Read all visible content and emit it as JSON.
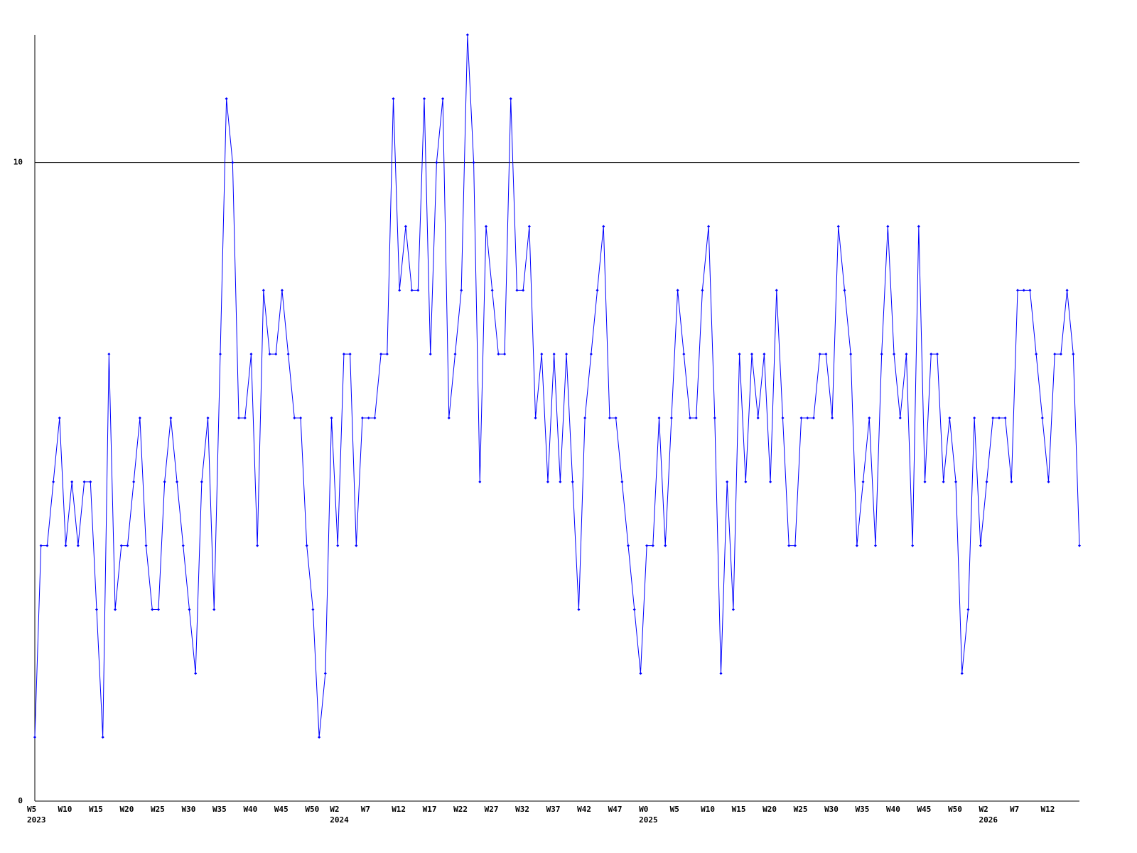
{
  "chart_data": {
    "type": "line",
    "categories": [
      "W5",
      null,
      null,
      null,
      null,
      "W10",
      null,
      null,
      null,
      null,
      "W15",
      null,
      null,
      null,
      null,
      "W20",
      null,
      null,
      null,
      null,
      "W25",
      null,
      null,
      null,
      null,
      "W30",
      null,
      null,
      null,
      null,
      "W35",
      null,
      null,
      null,
      null,
      "W40",
      null,
      null,
      null,
      null,
      "W45",
      null,
      null,
      null,
      null,
      "W50",
      null,
      null,
      null,
      "W2",
      null,
      null,
      null,
      null,
      "W7",
      null,
      null,
      null,
      null,
      "W12",
      null,
      null,
      null,
      null,
      "W17",
      null,
      null,
      null,
      null,
      "W22",
      null,
      null,
      null,
      null,
      "W27",
      null,
      null,
      null,
      null,
      "W32",
      null,
      null,
      null,
      null,
      "W37",
      null,
      null,
      null,
      null,
      "W42",
      null,
      null,
      null,
      null,
      "W47",
      null,
      null,
      null,
      null,
      "W0",
      null,
      null,
      null,
      null,
      "W5",
      null,
      null,
      null,
      null,
      "W10",
      null,
      null,
      null,
      null,
      "W15",
      null,
      null,
      null,
      null,
      "W20",
      null,
      null,
      null,
      null,
      "W25",
      null,
      null,
      null,
      null,
      "W30",
      null,
      null,
      null,
      null,
      "W35",
      null,
      null,
      null,
      null,
      "W40",
      null,
      null,
      null,
      null,
      "W45",
      null,
      null,
      null,
      null,
      "W50",
      null,
      null,
      null,
      null,
      "W2",
      null,
      null,
      null,
      null,
      "W7",
      null,
      null,
      null,
      null,
      "W12",
      null,
      null,
      null,
      null,
      null
    ],
    "category_years": [
      "2023",
      null,
      null,
      null,
      null,
      null,
      null,
      null,
      null,
      null,
      null,
      null,
      null,
      null,
      null,
      null,
      null,
      null,
      null,
      null,
      null,
      null,
      null,
      null,
      null,
      null,
      null,
      null,
      null,
      null,
      null,
      null,
      null,
      null,
      null,
      null,
      null,
      null,
      null,
      null,
      null,
      null,
      null,
      null,
      null,
      null,
      null,
      null,
      null,
      "2024",
      null,
      null,
      null,
      null,
      null,
      null,
      null,
      null,
      null,
      null,
      null,
      null,
      null,
      null,
      null,
      null,
      null,
      null,
      null,
      null,
      null,
      null,
      null,
      null,
      null,
      null,
      null,
      null,
      null,
      null,
      null,
      null,
      null,
      null,
      null,
      null,
      null,
      null,
      null,
      null,
      null,
      null,
      null,
      null,
      null,
      null,
      null,
      null,
      null,
      "2025",
      null,
      null,
      null,
      null,
      null,
      null,
      null,
      null,
      null,
      null,
      null,
      null,
      null,
      null,
      null,
      null,
      null,
      null,
      null,
      null,
      null,
      null,
      null,
      null,
      null,
      null,
      null,
      null,
      null,
      null,
      null,
      null,
      null,
      null,
      null,
      null,
      null,
      null,
      null,
      null,
      null,
      null,
      null,
      null,
      null,
      null,
      null,
      null,
      null,
      null,
      null,
      null,
      null,
      null,
      "2026",
      null,
      null,
      null,
      null,
      null,
      null,
      null,
      null,
      null,
      null,
      null,
      null,
      null,
      null,
      null
    ],
    "series": [
      {
        "color": "#0000ff",
        "values": [
          1,
          4,
          4,
          5,
          6,
          4,
          5,
          4,
          5,
          5,
          3,
          1,
          7,
          3,
          4,
          4,
          5,
          6,
          4,
          3,
          3,
          5,
          6,
          5,
          4,
          3,
          2,
          5,
          6,
          3,
          7,
          11,
          10,
          6,
          6,
          7,
          4,
          8,
          7,
          7,
          8,
          7,
          6,
          6,
          4,
          3,
          1,
          2,
          6,
          4,
          7,
          7,
          4,
          6,
          6,
          6,
          7,
          7,
          11,
          8,
          9,
          8,
          8,
          11,
          7,
          10,
          11,
          6,
          7,
          8,
          12,
          10,
          5,
          9,
          8,
          7,
          7,
          11,
          8,
          8,
          9,
          6,
          7,
          5,
          7,
          5,
          7,
          5,
          3,
          6,
          7,
          8,
          9,
          6,
          6,
          5,
          4,
          3,
          2,
          4,
          4,
          6,
          4,
          6,
          8,
          7,
          6,
          6,
          8,
          9,
          6,
          2,
          5,
          3,
          7,
          5,
          7,
          6,
          7,
          5,
          8,
          6,
          4,
          4,
          6,
          6,
          6,
          7,
          7,
          6,
          9,
          8,
          7,
          4,
          5,
          6,
          4,
          7,
          9,
          7,
          6,
          7,
          4,
          9,
          5,
          7,
          7,
          5,
          6,
          5,
          2,
          3,
          6,
          4,
          5,
          6,
          6,
          6,
          5,
          8,
          8,
          8,
          7,
          6,
          5,
          7,
          7,
          8,
          7,
          4
        ]
      }
    ],
    "ylim": [
      0,
      12
    ],
    "yticks": [
      0,
      10
    ],
    "grid": true
  }
}
